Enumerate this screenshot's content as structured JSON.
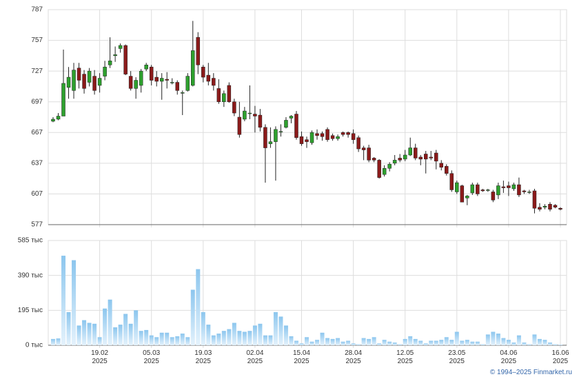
{
  "chart_data": [
    {
      "type": "candlestick",
      "up_color": "#2ea02e",
      "down_color": "#8b1a1a",
      "categories": [
        null,
        null,
        null,
        null,
        null,
        null,
        null,
        null,
        null,
        "19.02\n2025",
        null,
        null,
        null,
        null,
        null,
        null,
        null,
        null,
        null,
        "05.03\n2025",
        null,
        null,
        null,
        null,
        null,
        null,
        null,
        null,
        null,
        "19.03\n2025",
        null,
        null,
        null,
        null,
        null,
        null,
        null,
        null,
        null,
        "02.04\n2025",
        null,
        null,
        null,
        null,
        null,
        null,
        null,
        null,
        "15.04\n2025",
        null,
        null,
        null,
        null,
        null,
        null,
        null,
        null,
        null,
        "28.04\n2025",
        null,
        null,
        null,
        null,
        null,
        null,
        null,
        null,
        null,
        "12.05\n2025",
        null,
        null,
        null,
        null,
        null,
        null,
        null,
        null,
        null,
        "23.05\n2025",
        null,
        null,
        null,
        null,
        null,
        null,
        null,
        null,
        null,
        "04.06\n2025",
        null,
        null,
        null,
        null,
        null,
        null,
        null,
        null,
        null,
        "16.06\n2025"
      ],
      "open": [
        678,
        680,
        683,
        711,
        708,
        730,
        724,
        716,
        722,
        713,
        722,
        733,
        742,
        749,
        752,
        722,
        710,
        713,
        729,
        731,
        721,
        717,
        719,
        716,
        716,
        706,
        708,
        713,
        760,
        731,
        723,
        720,
        710,
        697,
        713,
        697,
        682,
        680,
        686,
        685,
        684,
        672,
        656,
        658,
        668,
        672,
        681,
        685,
        663,
        660,
        657,
        666,
        666,
        670,
        664,
        661,
        667,
        667,
        666,
        662,
        652,
        652,
        642,
        640,
        626,
        632,
        637,
        642,
        641,
        645,
        652,
        643,
        646,
        643,
        647,
        637,
        634,
        627,
        609,
        615,
        603,
        608,
        616,
        611,
        611,
        609,
        606,
        614,
        615,
        612,
        616,
        610,
        609,
        610,
        594,
        594,
        597,
        596,
        593
      ],
      "high": [
        682,
        686,
        748,
        731,
        735,
        735,
        728,
        730,
        728,
        725,
        737,
        760,
        751,
        754,
        753,
        727,
        721,
        729,
        735,
        733,
        727,
        725,
        726,
        720,
        718,
        708,
        725,
        776,
        765,
        733,
        735,
        725,
        719,
        708,
        716,
        700,
        697,
        692,
        713,
        693,
        690,
        675,
        672,
        673,
        675,
        682,
        684,
        688,
        668,
        663,
        669,
        670,
        668,
        672,
        666,
        665,
        668,
        668,
        670,
        664,
        654,
        655,
        643,
        641,
        635,
        638,
        645,
        646,
        650,
        662,
        656,
        645,
        649,
        649,
        650,
        640,
        636,
        630,
        620,
        616,
        606,
        618,
        618,
        612,
        612,
        611,
        618,
        620,
        619,
        618,
        623,
        611,
        611,
        612,
        598,
        597,
        599,
        597,
        594
      ],
      "low": [
        677,
        679,
        683,
        700,
        700,
        710,
        705,
        712,
        704,
        706,
        718,
        730,
        736,
        745,
        723,
        708,
        700,
        706,
        727,
        713,
        712,
        699,
        710,
        714,
        704,
        684,
        707,
        712,
        724,
        716,
        713,
        708,
        695,
        692,
        696,
        683,
        662,
        678,
        680,
        667,
        668,
        618,
        652,
        620,
        663,
        671,
        676,
        660,
        654,
        652,
        655,
        660,
        659,
        658,
        659,
        659,
        663,
        662,
        656,
        648,
        640,
        638,
        638,
        622,
        624,
        629,
        635,
        638,
        639,
        644,
        640,
        635,
        627,
        640,
        631,
        630,
        625,
        609,
        607,
        599,
        596,
        606,
        605,
        609,
        609,
        599,
        602,
        608,
        605,
        610,
        604,
        607,
        607,
        588,
        590,
        592,
        590,
        593,
        591
      ],
      "close": [
        680,
        683,
        715,
        721,
        728,
        718,
        710,
        727,
        708,
        720,
        731,
        737,
        743,
        752,
        724,
        710,
        718,
        727,
        733,
        718,
        717,
        720,
        718,
        716,
        708,
        706,
        722,
        747,
        733,
        721,
        717,
        713,
        697,
        705,
        697,
        686,
        665,
        688,
        686,
        683,
        672,
        652,
        658,
        670,
        668,
        679,
        683,
        662,
        656,
        658,
        667,
        664,
        663,
        660,
        661,
        663,
        665,
        665,
        660,
        651,
        650,
        640,
        640,
        623,
        632,
        636,
        640,
        640,
        645,
        652,
        642,
        641,
        641,
        642,
        639,
        633,
        627,
        611,
        618,
        599,
        605,
        616,
        607,
        610,
        611,
        601,
        615,
        613,
        613,
        616,
        606,
        609,
        609,
        593,
        592,
        595,
        592,
        594,
        592
      ],
      "ylim": [
        577,
        787
      ],
      "yticks": [
        577,
        607,
        637,
        667,
        697,
        727,
        757,
        787
      ],
      "grid": true
    },
    {
      "type": "bar",
      "color": "#8cc6ee",
      "values": [
        35,
        38,
        500,
        185,
        475,
        110,
        140,
        125,
        120,
        45,
        205,
        255,
        100,
        115,
        175,
        120,
        195,
        80,
        85,
        55,
        45,
        70,
        70,
        45,
        50,
        65,
        45,
        310,
        425,
        185,
        115,
        55,
        65,
        80,
        90,
        125,
        80,
        75,
        80,
        110,
        120,
        55,
        55,
        185,
        160,
        110,
        50,
        25,
        10,
        45,
        20,
        30,
        70,
        40,
        35,
        40,
        20,
        25,
        10,
        5,
        40,
        35,
        45,
        10,
        30,
        20,
        15,
        5,
        35,
        50,
        35,
        25,
        10,
        25,
        25,
        30,
        45,
        30,
        75,
        25,
        30,
        20,
        20,
        5,
        60,
        75,
        65,
        40,
        30,
        15,
        55,
        15,
        5,
        60,
        35,
        30,
        15,
        5,
        3
      ],
      "ylim": [
        0,
        585
      ],
      "yticks": [
        {
          "value": 0,
          "label": "0 тыс"
        },
        {
          "value": 195,
          "label": "195 тыс"
        },
        {
          "value": 390,
          "label": "390 тыс"
        },
        {
          "value": 585,
          "label": "585 тыс"
        }
      ],
      "grid": true
    }
  ],
  "copyright": "© 1994–2025 Finmarket.ru"
}
